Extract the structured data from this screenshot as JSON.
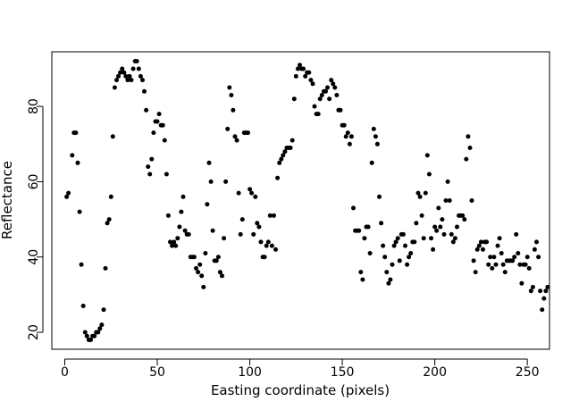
{
  "chart_data": {
    "type": "scatter",
    "title": "",
    "xlabel": "Easting coordinate (pixels)",
    "ylabel": "Reflectance",
    "xlim": [
      -7,
      262
    ],
    "ylim": [
      15.5,
      94.5
    ],
    "xticks": [
      0,
      50,
      100,
      150,
      200,
      250
    ],
    "yticks": [
      20,
      40,
      60,
      80
    ],
    "grid": false,
    "point_color": "#000000",
    "points": [
      [
        1,
        56
      ],
      [
        2,
        57
      ],
      [
        4,
        67
      ],
      [
        5,
        73
      ],
      [
        6,
        73
      ],
      [
        7,
        65
      ],
      [
        8,
        52
      ],
      [
        9,
        38
      ],
      [
        10,
        27
      ],
      [
        11,
        20
      ],
      [
        12,
        19
      ],
      [
        13,
        18
      ],
      [
        14,
        18
      ],
      [
        15,
        19
      ],
      [
        16,
        19
      ],
      [
        17,
        20
      ],
      [
        18,
        20
      ],
      [
        19,
        21
      ],
      [
        20,
        22
      ],
      [
        21,
        26
      ],
      [
        22,
        37
      ],
      [
        23,
        49
      ],
      [
        24,
        50
      ],
      [
        25,
        56
      ],
      [
        26,
        72
      ],
      [
        27,
        85
      ],
      [
        28,
        87
      ],
      [
        29,
        88
      ],
      [
        30,
        89
      ],
      [
        31,
        90
      ],
      [
        32,
        89
      ],
      [
        33,
        88
      ],
      [
        34,
        87
      ],
      [
        35,
        88
      ],
      [
        36,
        87
      ],
      [
        37,
        90
      ],
      [
        38,
        92
      ],
      [
        39,
        92
      ],
      [
        40,
        90
      ],
      [
        41,
        88
      ],
      [
        42,
        87
      ],
      [
        43,
        84
      ],
      [
        44,
        79
      ],
      [
        45,
        64
      ],
      [
        46,
        62
      ],
      [
        47,
        66
      ],
      [
        48,
        73
      ],
      [
        49,
        76
      ],
      [
        50,
        76
      ],
      [
        51,
        78
      ],
      [
        52,
        75
      ],
      [
        53,
        75
      ],
      [
        54,
        71
      ],
      [
        55,
        62
      ],
      [
        56,
        51
      ],
      [
        57,
        44
      ],
      [
        58,
        43
      ],
      [
        59,
        44
      ],
      [
        60,
        43
      ],
      [
        61,
        45
      ],
      [
        62,
        48
      ],
      [
        63,
        52
      ],
      [
        64,
        56
      ],
      [
        65,
        47
      ],
      [
        66,
        46
      ],
      [
        67,
        46
      ],
      [
        68,
        40
      ],
      [
        69,
        40
      ],
      [
        70,
        40
      ],
      [
        71,
        37
      ],
      [
        72,
        36
      ],
      [
        73,
        38
      ],
      [
        74,
        35
      ],
      [
        75,
        32
      ],
      [
        76,
        41
      ],
      [
        77,
        54
      ],
      [
        78,
        65
      ],
      [
        79,
        60
      ],
      [
        80,
        47
      ],
      [
        81,
        39
      ],
      [
        82,
        39
      ],
      [
        83,
        40
      ],
      [
        84,
        36
      ],
      [
        85,
        35
      ],
      [
        86,
        45
      ],
      [
        87,
        60
      ],
      [
        88,
        74
      ],
      [
        89,
        85
      ],
      [
        90,
        83
      ],
      [
        91,
        79
      ],
      [
        92,
        72
      ],
      [
        93,
        71
      ],
      [
        94,
        57
      ],
      [
        95,
        46
      ],
      [
        96,
        50
      ],
      [
        97,
        73
      ],
      [
        98,
        73
      ],
      [
        99,
        73
      ],
      [
        100,
        58
      ],
      [
        101,
        57
      ],
      [
        102,
        46
      ],
      [
        103,
        56
      ],
      [
        104,
        49
      ],
      [
        105,
        48
      ],
      [
        106,
        44
      ],
      [
        107,
        40
      ],
      [
        108,
        40
      ],
      [
        109,
        43
      ],
      [
        110,
        44
      ],
      [
        111,
        51
      ],
      [
        112,
        43
      ],
      [
        113,
        51
      ],
      [
        114,
        42
      ],
      [
        115,
        61
      ],
      [
        116,
        65
      ],
      [
        117,
        66
      ],
      [
        118,
        67
      ],
      [
        119,
        68
      ],
      [
        120,
        69
      ],
      [
        121,
        69
      ],
      [
        122,
        69
      ],
      [
        123,
        71
      ],
      [
        124,
        82
      ],
      [
        125,
        88
      ],
      [
        126,
        90
      ],
      [
        127,
        91
      ],
      [
        128,
        90
      ],
      [
        129,
        90
      ],
      [
        130,
        88
      ],
      [
        131,
        89
      ],
      [
        132,
        89
      ],
      [
        133,
        87
      ],
      [
        134,
        86
      ],
      [
        135,
        80
      ],
      [
        136,
        78
      ],
      [
        137,
        78
      ],
      [
        138,
        82
      ],
      [
        139,
        83
      ],
      [
        140,
        84
      ],
      [
        141,
        84
      ],
      [
        142,
        85
      ],
      [
        143,
        82
      ],
      [
        144,
        87
      ],
      [
        145,
        86
      ],
      [
        146,
        85
      ],
      [
        147,
        83
      ],
      [
        148,
        79
      ],
      [
        149,
        79
      ],
      [
        150,
        75
      ],
      [
        151,
        75
      ],
      [
        152,
        72
      ],
      [
        153,
        73
      ],
      [
        154,
        70
      ],
      [
        155,
        72
      ],
      [
        156,
        53
      ],
      [
        157,
        47
      ],
      [
        158,
        47
      ],
      [
        159,
        47
      ],
      [
        160,
        36
      ],
      [
        161,
        34
      ],
      [
        162,
        45
      ],
      [
        163,
        48
      ],
      [
        164,
        48
      ],
      [
        165,
        41
      ],
      [
        166,
        65
      ],
      [
        167,
        74
      ],
      [
        168,
        72
      ],
      [
        169,
        70
      ],
      [
        170,
        56
      ],
      [
        171,
        49
      ],
      [
        172,
        43
      ],
      [
        173,
        40
      ],
      [
        174,
        36
      ],
      [
        175,
        33
      ],
      [
        176,
        34
      ],
      [
        177,
        38
      ],
      [
        178,
        43
      ],
      [
        179,
        44
      ],
      [
        180,
        45
      ],
      [
        181,
        39
      ],
      [
        182,
        46
      ],
      [
        183,
        46
      ],
      [
        184,
        43
      ],
      [
        185,
        38
      ],
      [
        186,
        40
      ],
      [
        187,
        41
      ],
      [
        188,
        44
      ],
      [
        189,
        44
      ],
      [
        190,
        49
      ],
      [
        191,
        57
      ],
      [
        192,
        56
      ],
      [
        193,
        51
      ],
      [
        194,
        45
      ],
      [
        195,
        57
      ],
      [
        196,
        67
      ],
      [
        197,
        62
      ],
      [
        198,
        45
      ],
      [
        199,
        42
      ],
      [
        200,
        48
      ],
      [
        201,
        47
      ],
      [
        202,
        53
      ],
      [
        203,
        48
      ],
      [
        204,
        50
      ],
      [
        205,
        46
      ],
      [
        206,
        55
      ],
      [
        207,
        60
      ],
      [
        208,
        55
      ],
      [
        209,
        46
      ],
      [
        210,
        44
      ],
      [
        211,
        45
      ],
      [
        212,
        48
      ],
      [
        213,
        51
      ],
      [
        214,
        51
      ],
      [
        215,
        51
      ],
      [
        216,
        50
      ],
      [
        217,
        66
      ],
      [
        218,
        72
      ],
      [
        219,
        69
      ],
      [
        220,
        55
      ],
      [
        221,
        39
      ],
      [
        222,
        36
      ],
      [
        223,
        42
      ],
      [
        224,
        43
      ],
      [
        225,
        44
      ],
      [
        226,
        42
      ],
      [
        227,
        44
      ],
      [
        228,
        44
      ],
      [
        229,
        38
      ],
      [
        230,
        40
      ],
      [
        231,
        37
      ],
      [
        232,
        40
      ],
      [
        233,
        38
      ],
      [
        234,
        43
      ],
      [
        235,
        45
      ],
      [
        236,
        41
      ],
      [
        237,
        38
      ],
      [
        238,
        36
      ],
      [
        239,
        39
      ],
      [
        240,
        39
      ],
      [
        241,
        39
      ],
      [
        242,
        39
      ],
      [
        243,
        40
      ],
      [
        244,
        46
      ],
      [
        245,
        41
      ],
      [
        246,
        38
      ],
      [
        247,
        33
      ],
      [
        248,
        38
      ],
      [
        249,
        38
      ],
      [
        250,
        40
      ],
      [
        251,
        37
      ],
      [
        252,
        31
      ],
      [
        253,
        32
      ],
      [
        254,
        42
      ],
      [
        255,
        44
      ],
      [
        256,
        40
      ],
      [
        257,
        31
      ],
      [
        258,
        26
      ],
      [
        259,
        29
      ],
      [
        260,
        31
      ],
      [
        261,
        32
      ]
    ]
  }
}
